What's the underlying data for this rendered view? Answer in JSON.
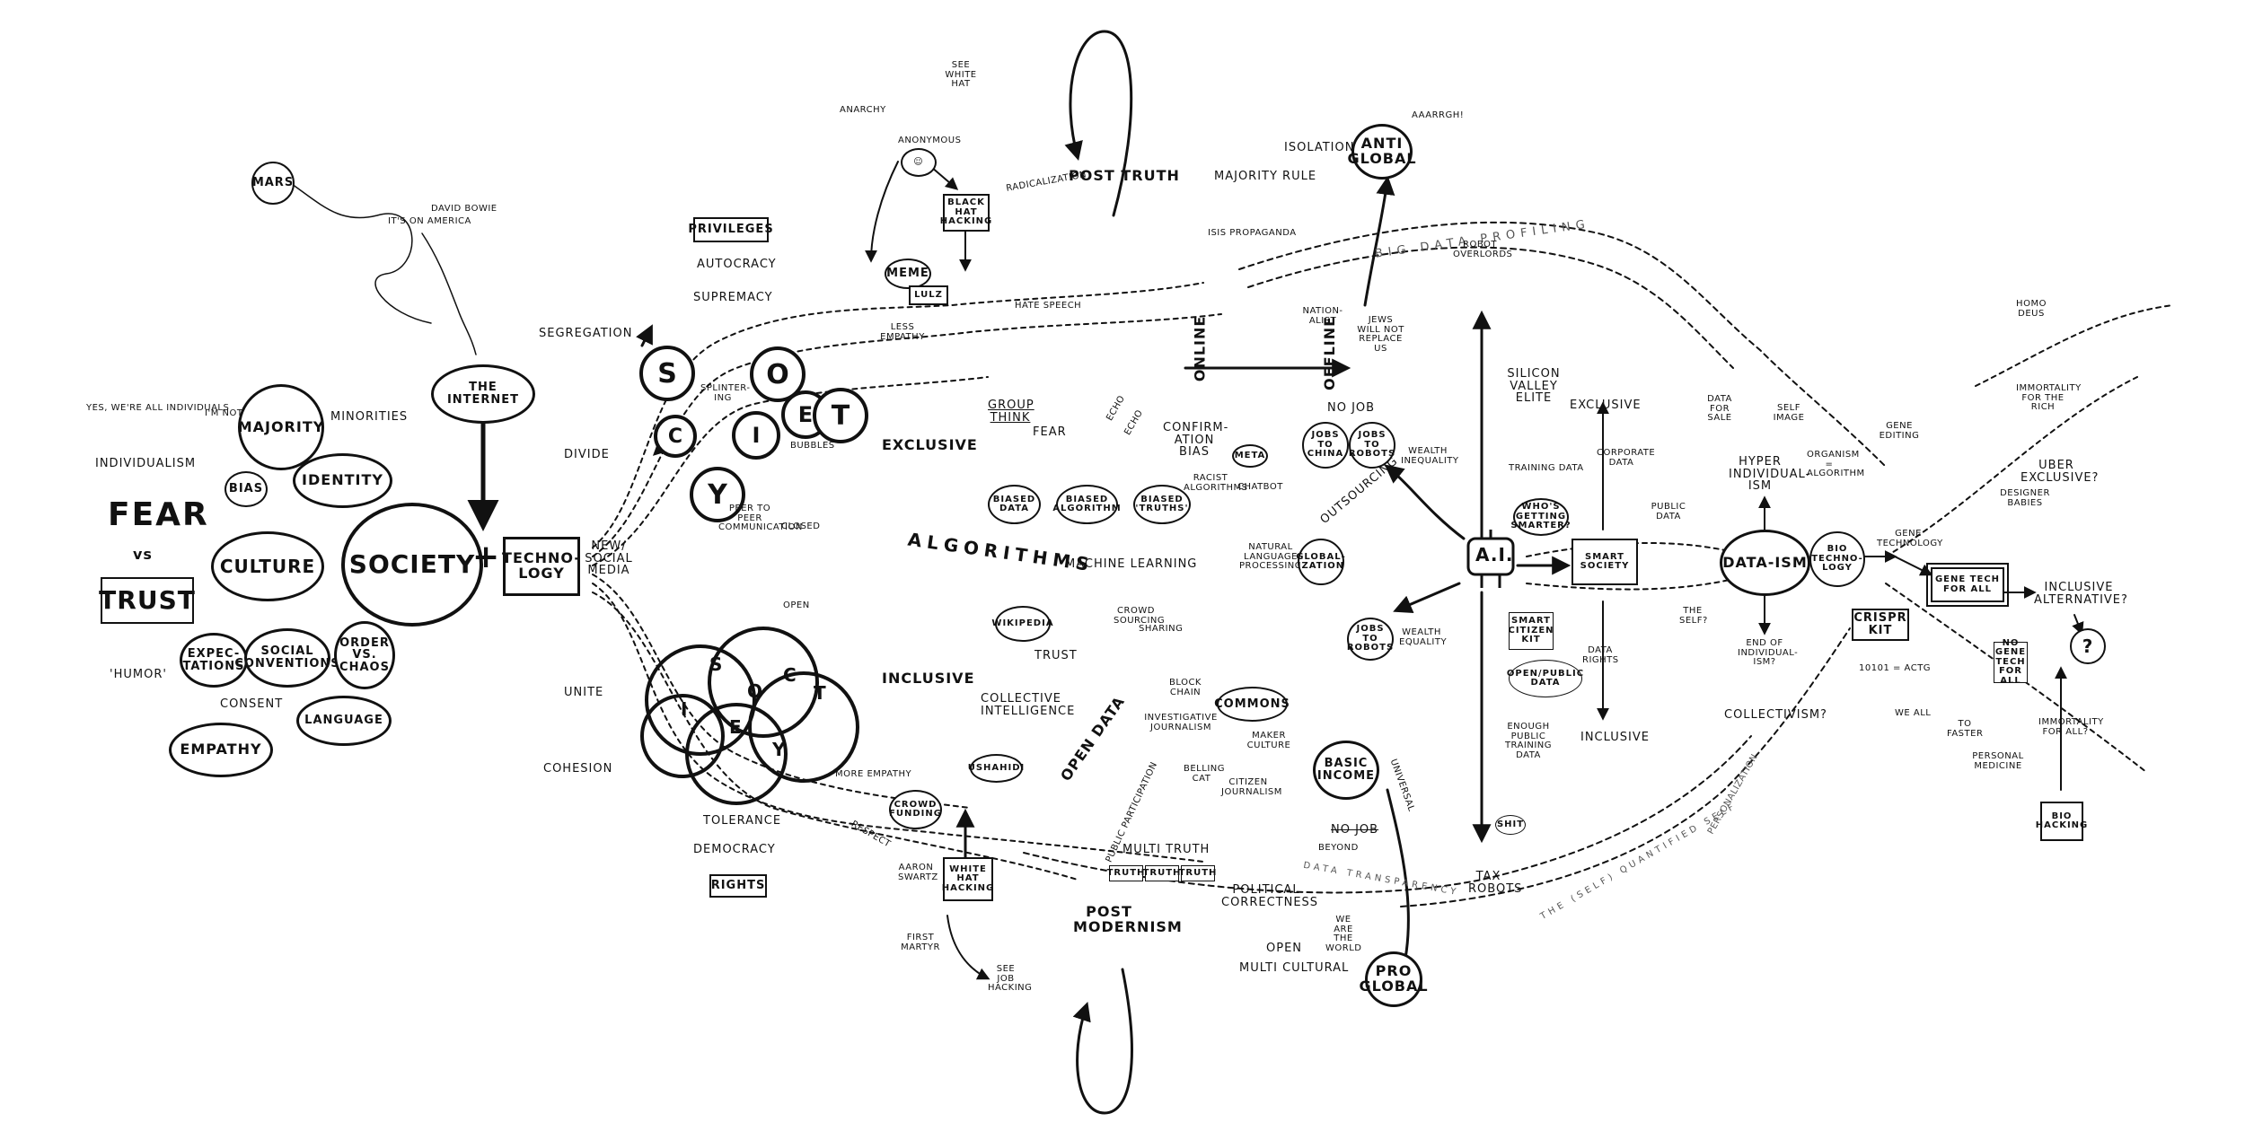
{
  "left": {
    "mars": "Mars",
    "david_bowie": "David Bowie",
    "its_on_america": "It's on America",
    "individuals_note": "Yes, we're all individuals",
    "im_not": "I'm not",
    "individualism": "Individualism",
    "fear": "Fear",
    "vs": "vs",
    "trust": "Trust",
    "humor": "'Humor'",
    "majority": "Majority",
    "minorities": "Minorities",
    "bias": "Bias",
    "identity": "Identity",
    "culture": "Culture",
    "society": "Society",
    "plus": "+",
    "technology": "Techno-logy",
    "the_internet": "The Internet",
    "expectations": "Expec-tations",
    "social_conventions": "Social conventions",
    "order_chaos": "Order vs. Chaos",
    "consent": "Consent",
    "language": "Language",
    "empathy": "Empathy",
    "new_social_media": "New/ Social Media"
  },
  "middle": {
    "segregation": "Segregation",
    "divide": "Divide",
    "unite": "Unite",
    "cohesion": "Cohesion",
    "privileges": "Privileges",
    "autocracy": "Autocracy",
    "supremacy": "Supremacy",
    "society_letters_top": [
      "S",
      "O",
      "C",
      "I",
      "E",
      "T",
      "Y"
    ],
    "society_letters_bottom": [
      "S",
      "O",
      "C",
      "I",
      "E",
      "T",
      "Y"
    ],
    "splintering": "Splinter-ing",
    "bubbles": "Bubbles",
    "less_empathy": "Less empathy",
    "more_empathy": "More empathy",
    "exclusive": "Exclusive",
    "inclusive": "Inclusive",
    "algorithms": "Algorithms",
    "machine_learning": "Machine learning",
    "peer_to_peer": "Peer to peer communication",
    "closed": "Closed",
    "open": "Open",
    "tolerance": "Tolerance",
    "democracy": "Democracy",
    "rights": "Rights",
    "respect": "Respect",
    "anarchy": "Anarchy",
    "anonymous": "Anonymous",
    "see_note": "See white hat",
    "meme": "Meme",
    "lulz": "LULZ",
    "black_hat_hacking": "Black hat hacking",
    "white_hat_hacking": "White hat hacking",
    "first_martyr": "First martyr",
    "aaron_swartz": "Aaron Swartz",
    "see_job_hacking": "See job hacking",
    "crowd_funding": "Crowd funding",
    "ushahidi": "Ushahidi",
    "open_data": "Open data",
    "crowd_sourcing": "Crowd sourcing",
    "sharing": "Sharing",
    "trust": "Trust",
    "wikipedia": "Wikipedia",
    "collective_intelligence": "Collective intelligence",
    "block_chain": "Block chain",
    "investigative_journalism": "Investigative journalism",
    "public_participation": "Public participation",
    "citizen_journalism": "Citizen journalism",
    "belling_cat": "Belling cat",
    "maker_culture": "Maker culture",
    "commons": "Commons",
    "basic_income": "Basic income",
    "no_job": "No job",
    "beyond": "Beyond",
    "group_think": "Group think",
    "fear": "Fear",
    "echo": "Echo",
    "confirmation_bias": "Confirm-ation bias",
    "biased_data": "Biased data",
    "biased_algorithm": "Biased algorithm",
    "biased_truths": "Biased 'truths'",
    "racist_algorithms": "Racist algorithms",
    "chatbot": "Chatbot",
    "meta": "Meta",
    "natural_language": "Natural language processing",
    "radicalization": "Radicalization",
    "hate_speech": "Hate speech",
    "post_truth": "Post truth",
    "post_modernism": "Post modernism",
    "multi_truth": "Multi truth",
    "truth": "Truth",
    "political_correctness": "Political correctness",
    "open_multicultural": "Open",
    "multi_cultural": "Multi cultural",
    "online": "Online",
    "offline": "Offline",
    "isis_propaganda": "ISIS propaganda",
    "isolation": "Isolation",
    "majority_rule": "Majority rule",
    "anti_global": "Anti global",
    "aaarrgh": "Aaarrgh!",
    "nationalist": "Nation-alist",
    "jews_will_not_replace_us": "Jews will not replace us",
    "pro_global": "Pro global",
    "we_are_the_world": "We are the world",
    "universal": "Universal",
    "outsourcing": "Outsourcing",
    "globalization": "Global-ization",
    "jobs_to_china": "Jobs to China",
    "jobs_to_robots": "Jobs to robots",
    "wealth_inequality": "Wealth inequality",
    "wealth_equality": "Wealth equality",
    "no_job_2": "No job",
    "big_data_profiling": "Big data profiling",
    "data_transparency": "Data transparency",
    "self_quantified": "The (self) quantified self",
    "personalization": "Personalization"
  },
  "right": {
    "ai": "A.I.",
    "robot_overlords": "Robot overlords",
    "silicon_valley_elite": "Silicon Valley elite",
    "exclusive": "Exclusive",
    "inclusive": "Inclusive",
    "training_data": "Training data",
    "whos_getting_smarter": "Who's getting smarter?",
    "smart_society": "Smart society",
    "corporate_data": "Corporate data",
    "public_data": "Public data",
    "smart_citizen_kit": "Smart citizen kit",
    "open_public_data": "Open/public data",
    "data_rights": "Data rights",
    "enough_public_training_data": "Enough public training data",
    "tax_robots": "Tax robots",
    "shit": "Shit",
    "data_for_sale": "Data for sale",
    "hyper_individualism": "Hyper individual-ism",
    "dataism": "Data-ism",
    "end_of_individualism": "End of individual-ism?",
    "collectivism": "Collectivism?",
    "bio_technology": "Bio techno-logy",
    "gene_technology": "Gene technology",
    "gene_tech_for_all": "Gene tech for all",
    "crispr_kit": "CRISPR kit",
    "uber_exclusive": "Uber exclusive?",
    "inclusive_alternative": "Inclusive alternative?",
    "question": "?",
    "designer_babies": "Designer babies",
    "immortality_rich": "Immortality for the rich",
    "immortality_all": "Immortality for all?",
    "homo_deus": "Homo deus",
    "bio_hacking": "Bio hacking",
    "no_gene_tech_for_all": "No gene tech for all",
    "gene_editing": "Gene editing",
    "dna_code": "10101 = ACTG",
    "personal_medicine": "Personal medicine",
    "organism_algorithm": "Organism = algorithm",
    "the_self": "The self?",
    "self_image": "Self image",
    "we_all": "We all",
    "to_faster": "To faster"
  }
}
